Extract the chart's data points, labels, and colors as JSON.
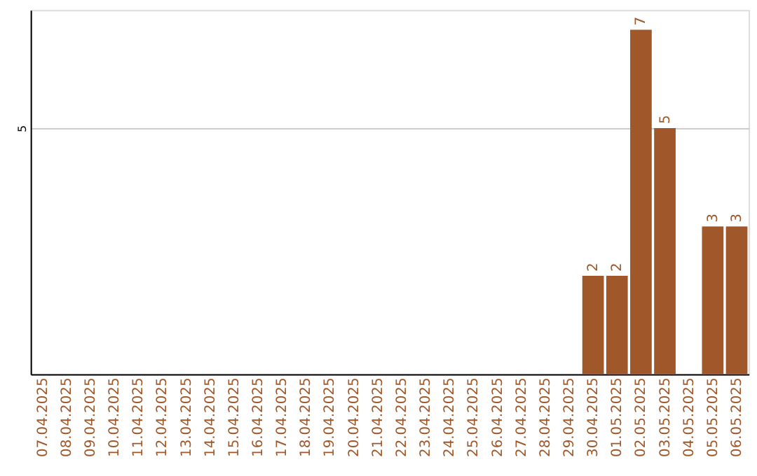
{
  "chart_data": {
    "type": "bar",
    "categories": [
      "07.04.2025",
      "08.04.2025",
      "09.04.2025",
      "10.04.2025",
      "11.04.2025",
      "12.04.2025",
      "13.04.2025",
      "14.04.2025",
      "15.04.2025",
      "16.04.2025",
      "17.04.2025",
      "18.04.2025",
      "19.04.2025",
      "20.04.2025",
      "21.04.2025",
      "22.04.2025",
      "23.04.2025",
      "24.04.2025",
      "25.04.2025",
      "26.04.2025",
      "27.04.2025",
      "28.04.2025",
      "29.04.2025",
      "30.04.2025",
      "01.05.2025",
      "02.05.2025",
      "03.05.2025",
      "04.05.2025",
      "05.05.2025",
      "06.05.2025"
    ],
    "values": [
      null,
      null,
      null,
      null,
      null,
      null,
      null,
      null,
      null,
      null,
      null,
      null,
      null,
      null,
      null,
      null,
      null,
      null,
      null,
      null,
      null,
      null,
      null,
      2,
      2,
      7,
      5,
      null,
      3,
      3
    ],
    "color": "#a0582a",
    "ylim": [
      0,
      7.4
    ],
    "yticks": [
      5
    ],
    "grid": "y",
    "data_labels": true
  }
}
